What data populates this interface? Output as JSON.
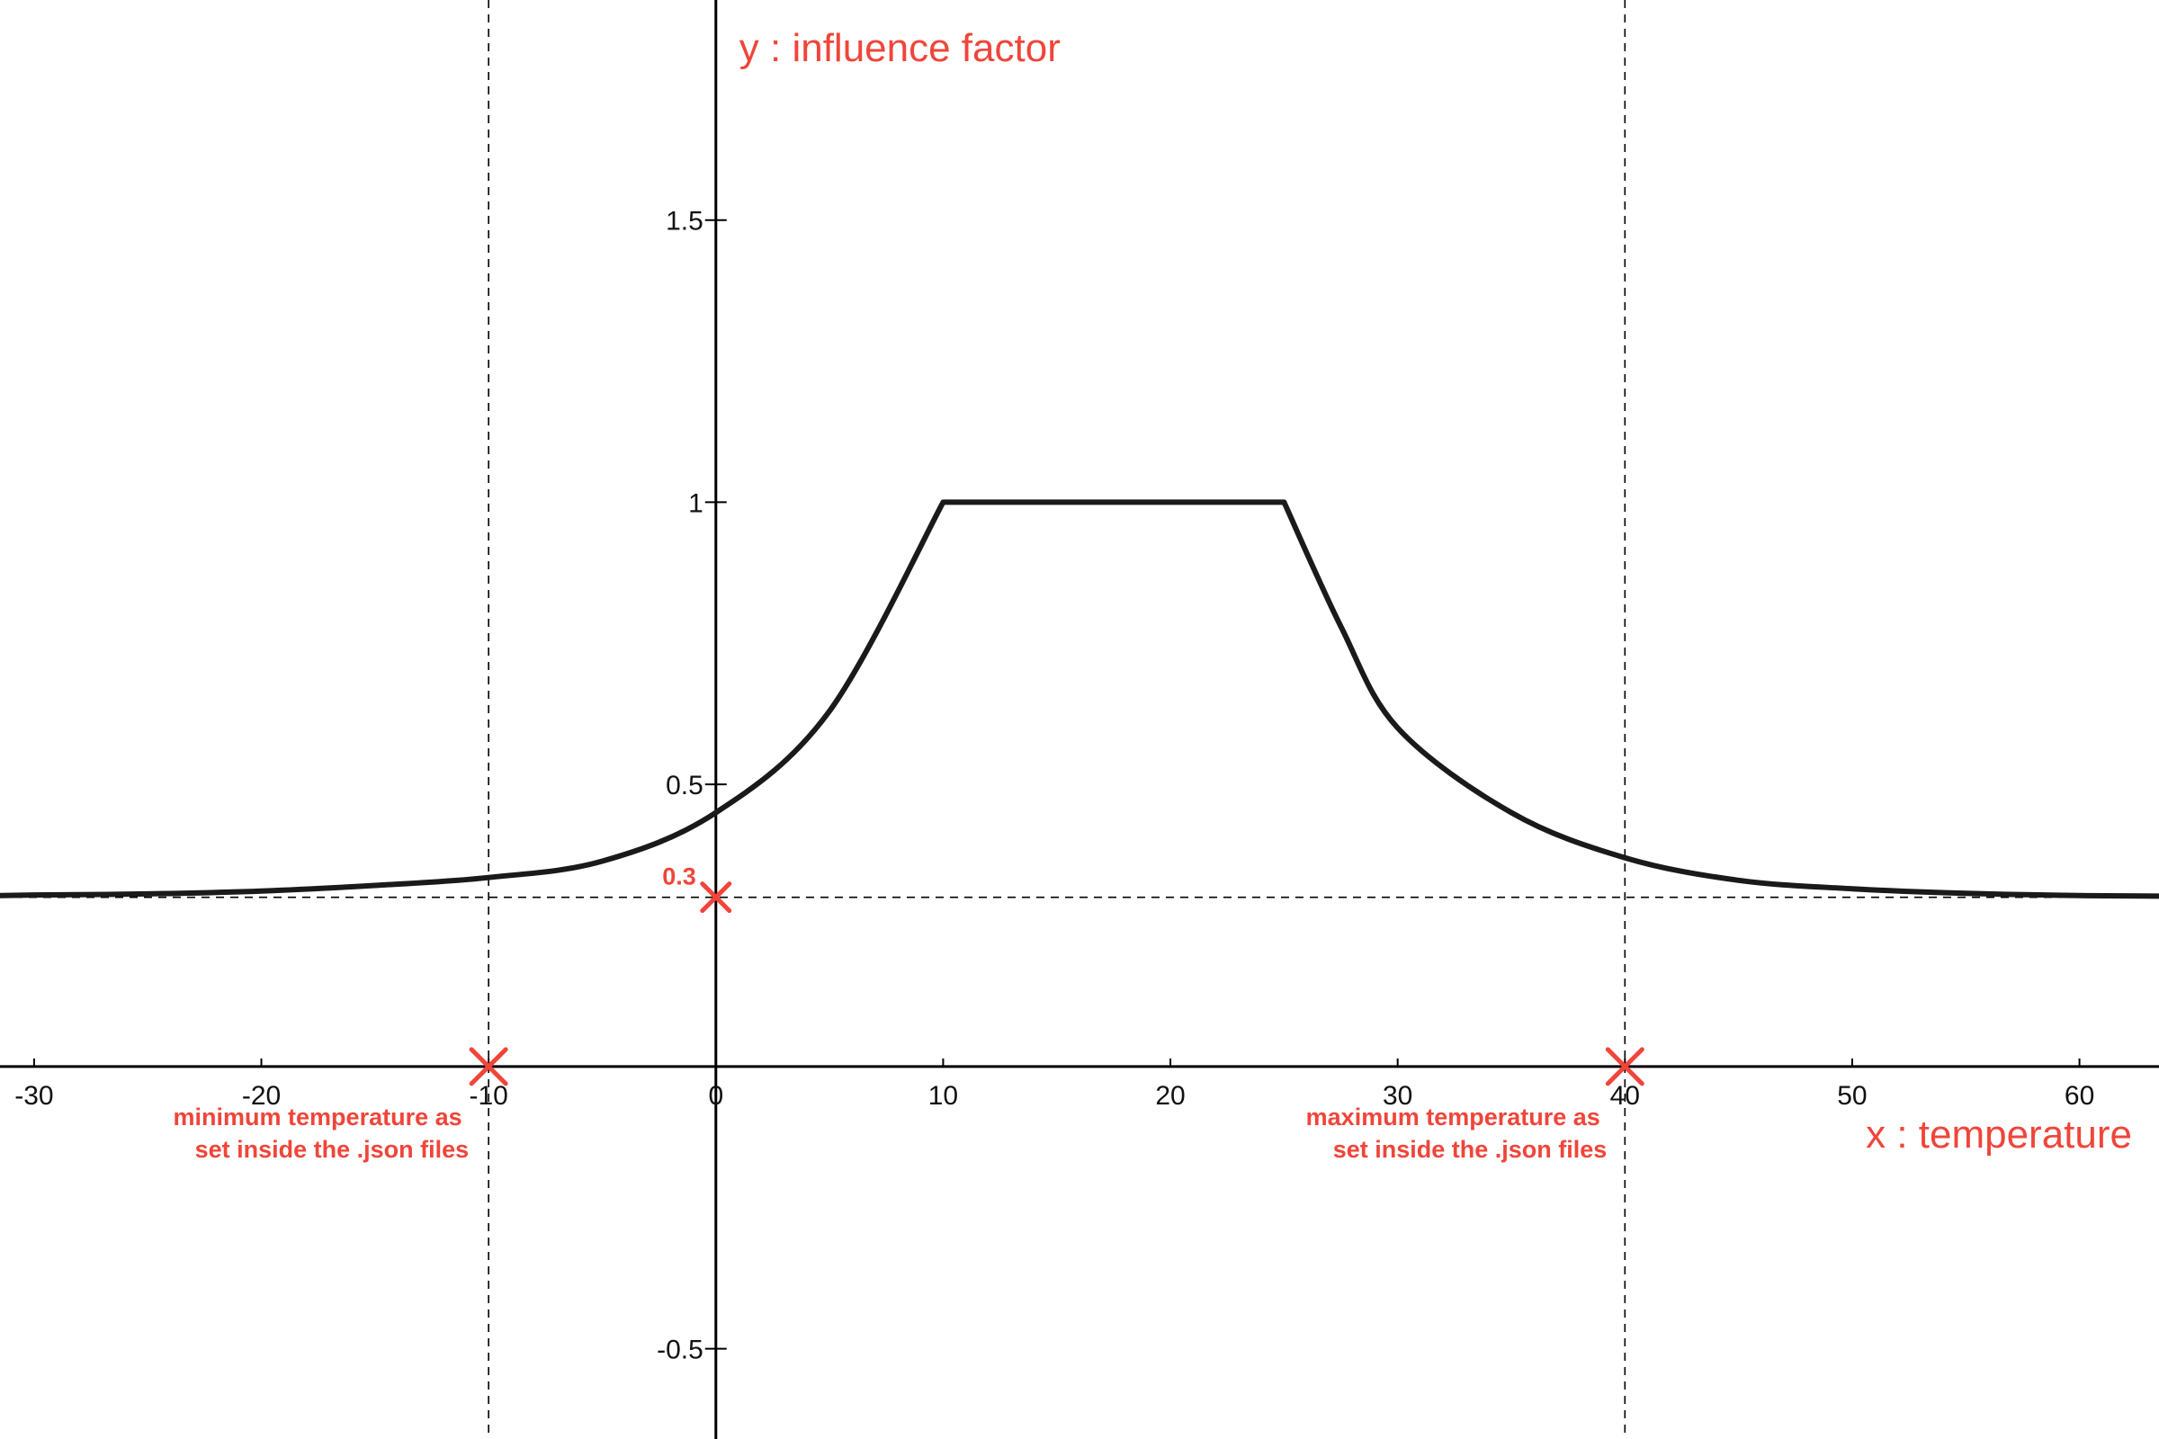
{
  "chart_data": {
    "type": "line",
    "title": "",
    "xlabel": "x : temperature",
    "ylabel": "y : influence factor",
    "xlim": [
      -31.5,
      63.5
    ],
    "ylim": [
      -0.66,
      1.89
    ],
    "x_ticks": [
      -30,
      -20,
      -10,
      0,
      10,
      20,
      30,
      40,
      50,
      60
    ],
    "y_ticks": [
      -0.5,
      0.5,
      1,
      1.5
    ],
    "grid": false,
    "accent_color": "#f0453a",
    "curve_color": "#1a1a1a",
    "series": [
      {
        "x": [
          -31.5,
          -30,
          -25,
          -20,
          -15,
          -10,
          -5,
          0,
          5,
          10,
          15,
          20,
          25,
          27.5,
          30,
          35,
          40,
          45,
          50,
          55,
          60,
          63.5
        ],
        "y": [
          0.303,
          0.304,
          0.306,
          0.311,
          0.321,
          0.335,
          0.364,
          0.45,
          0.63,
          1.0,
          1.0,
          1.0,
          1.0,
          0.78,
          0.6,
          0.45,
          0.37,
          0.33,
          0.315,
          0.307,
          0.303,
          0.302
        ]
      }
    ],
    "guides": {
      "baseline_y": 0.3,
      "min_temperature_x": -10,
      "max_temperature_x": 40
    },
    "markers": [
      {
        "x": 0,
        "y": 0.3,
        "label": "0.3"
      },
      {
        "x": -10,
        "y": 0
      },
      {
        "x": 40,
        "y": 0
      }
    ],
    "annotations": {
      "min_temperature": [
        "minimum temperature as",
        "set inside the .json files"
      ],
      "max_temperature": [
        "maximum temperature as",
        "set inside the .json files"
      ]
    }
  }
}
